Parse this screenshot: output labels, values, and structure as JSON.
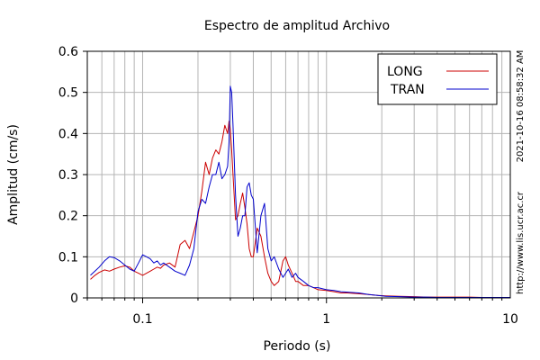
{
  "chart_data": {
    "type": "line",
    "title": "Espectro de amplitud Archivo",
    "xlabel": "Periodo (s)",
    "ylabel": "Amplitud (cm/s)",
    "xscale": "log",
    "xlim": [
      0.05,
      10
    ],
    "ylim": [
      0,
      0.6
    ],
    "x_ticks": [
      {
        "value": 0.1,
        "label": "0.1"
      },
      {
        "value": 1,
        "label": "1"
      },
      {
        "value": 10,
        "label": "10"
      }
    ],
    "y_ticks": [
      {
        "value": 0,
        "label": "0"
      },
      {
        "value": 0.1,
        "label": "0.1"
      },
      {
        "value": 0.2,
        "label": "0.2"
      },
      {
        "value": 0.3,
        "label": "0.3"
      },
      {
        "value": 0.4,
        "label": "0.4"
      },
      {
        "value": 0.5,
        "label": "0.5"
      },
      {
        "value": 0.6,
        "label": "0.6"
      }
    ],
    "grid": true,
    "legend_position": "top-right",
    "series": [
      {
        "name": "LONG",
        "color": "#cc0000",
        "x": [
          0.052,
          0.055,
          0.058,
          0.062,
          0.066,
          0.07,
          0.075,
          0.08,
          0.085,
          0.09,
          0.095,
          0.1,
          0.105,
          0.11,
          0.115,
          0.12,
          0.125,
          0.13,
          0.14,
          0.15,
          0.16,
          0.17,
          0.18,
          0.19,
          0.2,
          0.21,
          0.22,
          0.23,
          0.24,
          0.25,
          0.26,
          0.27,
          0.28,
          0.29,
          0.295,
          0.3,
          0.305,
          0.31,
          0.32,
          0.33,
          0.34,
          0.35,
          0.36,
          0.37,
          0.38,
          0.39,
          0.4,
          0.42,
          0.44,
          0.46,
          0.48,
          0.5,
          0.52,
          0.55,
          0.58,
          0.6,
          0.62,
          0.65,
          0.68,
          0.7,
          0.75,
          0.8,
          0.85,
          0.9,
          1.0,
          1.1,
          1.2,
          1.3,
          1.5,
          1.7,
          1.9,
          2.1,
          2.5,
          3,
          3.5,
          4,
          5,
          6,
          7,
          8,
          9,
          10
        ],
        "y": [
          0.045,
          0.055,
          0.062,
          0.068,
          0.065,
          0.07,
          0.075,
          0.078,
          0.075,
          0.065,
          0.06,
          0.055,
          0.06,
          0.065,
          0.07,
          0.075,
          0.072,
          0.08,
          0.085,
          0.075,
          0.13,
          0.14,
          0.12,
          0.16,
          0.2,
          0.26,
          0.33,
          0.3,
          0.34,
          0.36,
          0.35,
          0.38,
          0.42,
          0.4,
          0.43,
          0.41,
          0.36,
          0.3,
          0.19,
          0.2,
          0.23,
          0.255,
          0.22,
          0.18,
          0.12,
          0.1,
          0.1,
          0.17,
          0.15,
          0.1,
          0.06,
          0.04,
          0.03,
          0.04,
          0.09,
          0.1,
          0.08,
          0.06,
          0.04,
          0.04,
          0.03,
          0.03,
          0.025,
          0.02,
          0.018,
          0.015,
          0.012,
          0.012,
          0.01,
          0.008,
          0.006,
          0.005,
          0.004,
          0.003,
          0.002,
          0.002,
          0.002,
          0.002,
          0.001,
          0.001,
          0.001,
          0.001
        ]
      },
      {
        "name": "TRAN",
        "color": "#0000cc",
        "x": [
          0.052,
          0.055,
          0.058,
          0.062,
          0.066,
          0.07,
          0.075,
          0.08,
          0.085,
          0.09,
          0.095,
          0.1,
          0.105,
          0.11,
          0.115,
          0.12,
          0.125,
          0.13,
          0.14,
          0.15,
          0.16,
          0.17,
          0.18,
          0.19,
          0.2,
          0.21,
          0.22,
          0.23,
          0.24,
          0.25,
          0.26,
          0.27,
          0.28,
          0.29,
          0.295,
          0.3,
          0.305,
          0.31,
          0.32,
          0.33,
          0.34,
          0.35,
          0.36,
          0.37,
          0.38,
          0.39,
          0.4,
          0.42,
          0.44,
          0.46,
          0.48,
          0.5,
          0.52,
          0.55,
          0.58,
          0.6,
          0.62,
          0.65,
          0.68,
          0.7,
          0.75,
          0.8,
          0.85,
          0.9,
          1.0,
          1.1,
          1.2,
          1.3,
          1.5,
          1.7,
          1.9,
          2.1,
          2.5,
          3,
          3.5,
          4,
          5,
          6,
          7,
          8,
          9,
          10
        ],
        "y": [
          0.055,
          0.065,
          0.075,
          0.09,
          0.1,
          0.098,
          0.09,
          0.08,
          0.07,
          0.065,
          0.085,
          0.105,
          0.1,
          0.095,
          0.085,
          0.09,
          0.08,
          0.085,
          0.075,
          0.065,
          0.06,
          0.055,
          0.08,
          0.12,
          0.21,
          0.24,
          0.23,
          0.27,
          0.3,
          0.3,
          0.33,
          0.29,
          0.3,
          0.32,
          0.38,
          0.515,
          0.5,
          0.42,
          0.25,
          0.15,
          0.17,
          0.2,
          0.2,
          0.27,
          0.28,
          0.25,
          0.24,
          0.11,
          0.2,
          0.23,
          0.12,
          0.09,
          0.1,
          0.07,
          0.05,
          0.06,
          0.07,
          0.05,
          0.06,
          0.05,
          0.04,
          0.03,
          0.025,
          0.025,
          0.02,
          0.018,
          0.015,
          0.014,
          0.012,
          0.008,
          0.006,
          0.004,
          0.003,
          0.002,
          0.002,
          0.001,
          0.001,
          0.001,
          0.001,
          0.001,
          0.001,
          0.001
        ]
      }
    ]
  },
  "side_labels": {
    "timestamp": "2021-10-16 08:58:32 AM",
    "url": "http://www.lis.ucr.ac.cr"
  }
}
